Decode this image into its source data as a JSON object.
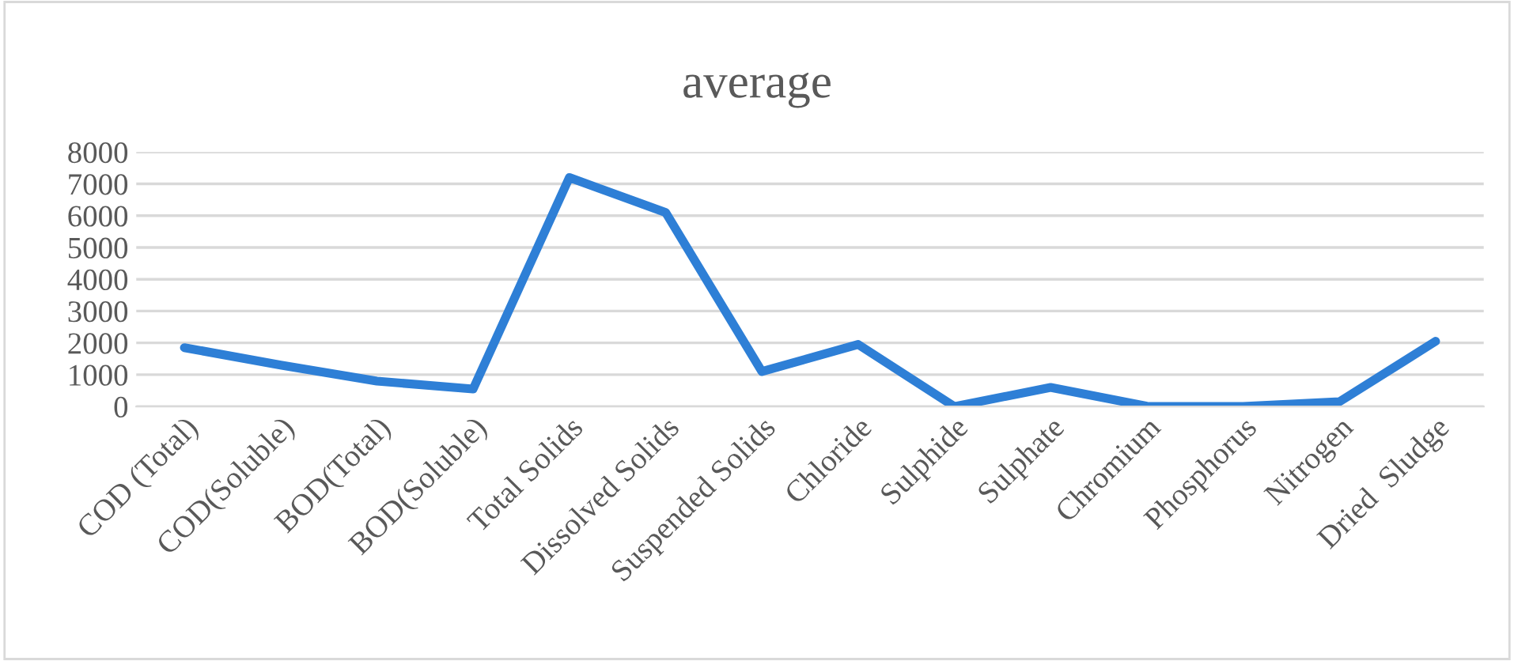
{
  "chart_data": {
    "type": "line",
    "title": "average",
    "categories": [
      "COD (Total)",
      "COD(Soluble)",
      "BOD(Total)",
      "BOD(Soluble)",
      "Total Solids",
      "Dissolved Solids",
      "Suspended Solids",
      "Chloride",
      "Sulphide",
      "Sulphate",
      "Chromium",
      "Phosphorus",
      "Nitrogen",
      "Dried  Sludge"
    ],
    "series": [
      {
        "color": "#2e7fd6",
        "values": [
          1850,
          1300,
          800,
          550,
          7200,
          6100,
          1100,
          1950,
          0,
          600,
          10,
          0,
          150,
          2050
        ]
      }
    ],
    "ylim": [
      0,
      8000
    ],
    "yticks": [
      0,
      1000,
      2000,
      3000,
      4000,
      5000,
      6000,
      7000,
      8000
    ],
    "grid": "y",
    "legend": false,
    "marker": "none",
    "line_style": "solid"
  }
}
